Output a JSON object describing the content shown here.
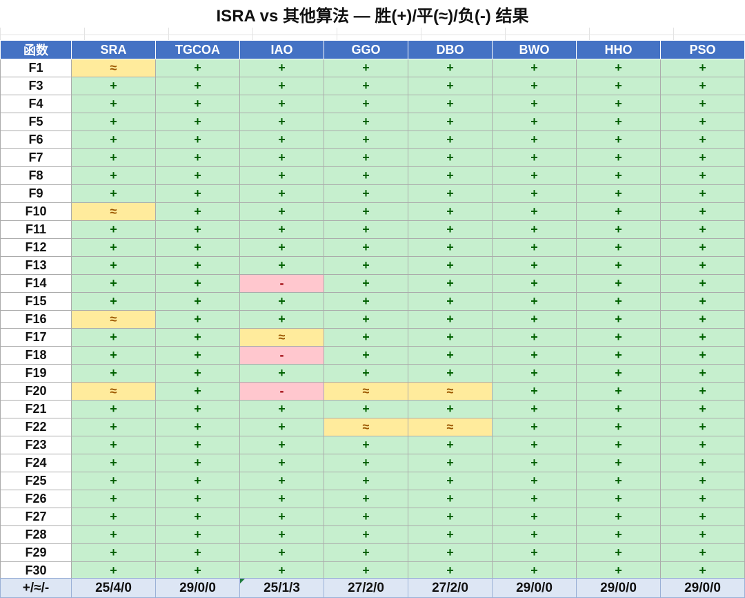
{
  "title": "ISRA vs 其他算法 — 胜(+)/平(≈)/负(-) 结果",
  "colors": {
    "header_bg": "#4472c4",
    "win_bg": "#c6efce",
    "win_text": "#006100",
    "tie_bg": "#ffeb9c",
    "tie_text": "#9c5700",
    "loss_bg": "#ffc7ce",
    "loss_text": "#9c0006",
    "summary_bg": "#dde6f4"
  },
  "symbols": {
    "win": "+",
    "tie": "≈",
    "loss": "-"
  },
  "table": {
    "columns": [
      "函数",
      "SRA",
      "TGCOA",
      "IAO",
      "GGO",
      "DBO",
      "BWO",
      "HHO",
      "PSO"
    ],
    "rows": [
      {
        "fn": "F1",
        "results": [
          "tie",
          "win",
          "win",
          "win",
          "win",
          "win",
          "win",
          "win"
        ]
      },
      {
        "fn": "F3",
        "results": [
          "win",
          "win",
          "win",
          "win",
          "win",
          "win",
          "win",
          "win"
        ]
      },
      {
        "fn": "F4",
        "results": [
          "win",
          "win",
          "win",
          "win",
          "win",
          "win",
          "win",
          "win"
        ]
      },
      {
        "fn": "F5",
        "results": [
          "win",
          "win",
          "win",
          "win",
          "win",
          "win",
          "win",
          "win"
        ]
      },
      {
        "fn": "F6",
        "results": [
          "win",
          "win",
          "win",
          "win",
          "win",
          "win",
          "win",
          "win"
        ]
      },
      {
        "fn": "F7",
        "results": [
          "win",
          "win",
          "win",
          "win",
          "win",
          "win",
          "win",
          "win"
        ]
      },
      {
        "fn": "F8",
        "results": [
          "win",
          "win",
          "win",
          "win",
          "win",
          "win",
          "win",
          "win"
        ]
      },
      {
        "fn": "F9",
        "results": [
          "win",
          "win",
          "win",
          "win",
          "win",
          "win",
          "win",
          "win"
        ]
      },
      {
        "fn": "F10",
        "results": [
          "tie",
          "win",
          "win",
          "win",
          "win",
          "win",
          "win",
          "win"
        ]
      },
      {
        "fn": "F11",
        "results": [
          "win",
          "win",
          "win",
          "win",
          "win",
          "win",
          "win",
          "win"
        ]
      },
      {
        "fn": "F12",
        "results": [
          "win",
          "win",
          "win",
          "win",
          "win",
          "win",
          "win",
          "win"
        ]
      },
      {
        "fn": "F13",
        "results": [
          "win",
          "win",
          "win",
          "win",
          "win",
          "win",
          "win",
          "win"
        ]
      },
      {
        "fn": "F14",
        "results": [
          "win",
          "win",
          "loss",
          "win",
          "win",
          "win",
          "win",
          "win"
        ]
      },
      {
        "fn": "F15",
        "results": [
          "win",
          "win",
          "win",
          "win",
          "win",
          "win",
          "win",
          "win"
        ]
      },
      {
        "fn": "F16",
        "results": [
          "tie",
          "win",
          "win",
          "win",
          "win",
          "win",
          "win",
          "win"
        ]
      },
      {
        "fn": "F17",
        "results": [
          "win",
          "win",
          "tie",
          "win",
          "win",
          "win",
          "win",
          "win"
        ]
      },
      {
        "fn": "F18",
        "results": [
          "win",
          "win",
          "loss",
          "win",
          "win",
          "win",
          "win",
          "win"
        ]
      },
      {
        "fn": "F19",
        "results": [
          "win",
          "win",
          "win",
          "win",
          "win",
          "win",
          "win",
          "win"
        ]
      },
      {
        "fn": "F20",
        "results": [
          "tie",
          "win",
          "loss",
          "tie",
          "tie",
          "win",
          "win",
          "win"
        ]
      },
      {
        "fn": "F21",
        "results": [
          "win",
          "win",
          "win",
          "win",
          "win",
          "win",
          "win",
          "win"
        ]
      },
      {
        "fn": "F22",
        "results": [
          "win",
          "win",
          "win",
          "tie",
          "tie",
          "win",
          "win",
          "win"
        ]
      },
      {
        "fn": "F23",
        "results": [
          "win",
          "win",
          "win",
          "win",
          "win",
          "win",
          "win",
          "win"
        ]
      },
      {
        "fn": "F24",
        "results": [
          "win",
          "win",
          "win",
          "win",
          "win",
          "win",
          "win",
          "win"
        ]
      },
      {
        "fn": "F25",
        "results": [
          "win",
          "win",
          "win",
          "win",
          "win",
          "win",
          "win",
          "win"
        ]
      },
      {
        "fn": "F26",
        "results": [
          "win",
          "win",
          "win",
          "win",
          "win",
          "win",
          "win",
          "win"
        ]
      },
      {
        "fn": "F27",
        "results": [
          "win",
          "win",
          "win",
          "win",
          "win",
          "win",
          "win",
          "win"
        ]
      },
      {
        "fn": "F28",
        "results": [
          "win",
          "win",
          "win",
          "win",
          "win",
          "win",
          "win",
          "win"
        ]
      },
      {
        "fn": "F29",
        "results": [
          "win",
          "win",
          "win",
          "win",
          "win",
          "win",
          "win",
          "win"
        ]
      },
      {
        "fn": "F30",
        "results": [
          "win",
          "win",
          "win",
          "win",
          "win",
          "win",
          "win",
          "win"
        ]
      }
    ]
  },
  "summary": {
    "label": "+/≈/-",
    "values": [
      "25/4/0",
      "29/0/0",
      "25/1/3",
      "27/2/0",
      "27/2/0",
      "29/0/0",
      "29/0/0",
      "29/0/0"
    ]
  }
}
